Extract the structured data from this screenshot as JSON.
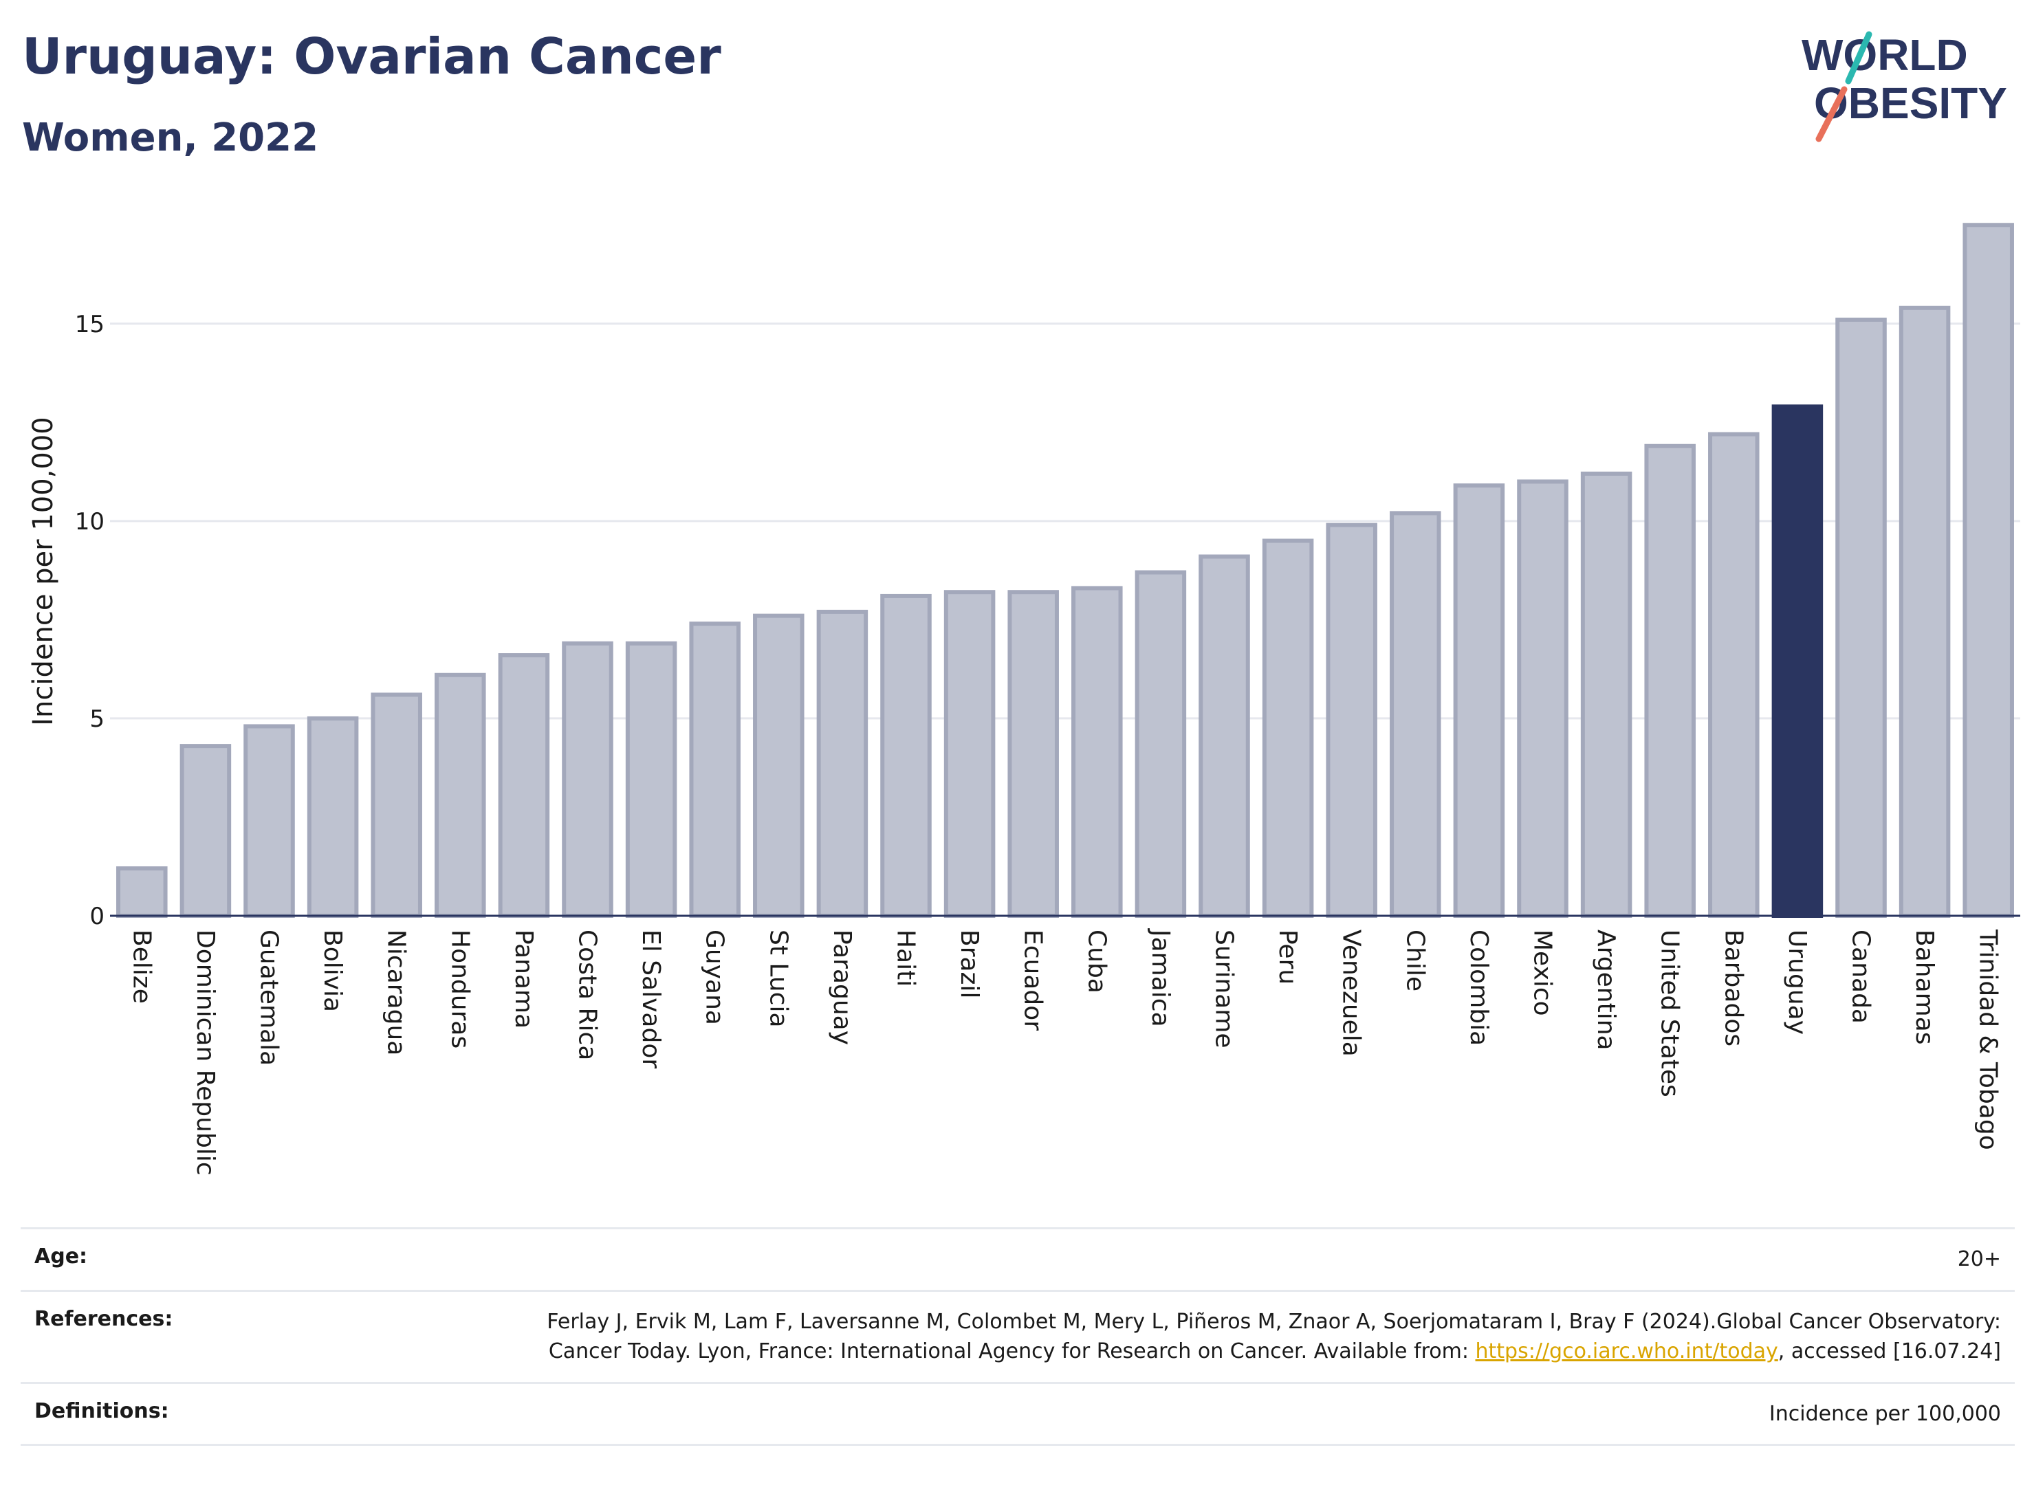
{
  "header": {
    "title": "Uruguay: Ovarian Cancer",
    "subtitle": "Women, 2022"
  },
  "logo": {
    "line1": "WORLD",
    "line2": "OBESITY"
  },
  "colors": {
    "highlight": "#2a3560",
    "bar_fill": "#bec2d0",
    "bar_stroke": "#a3a8bb",
    "grid": "#e6e8ee",
    "text": "#1a1a1a",
    "logo_teal": "#2bb8b0",
    "logo_red": "#e8705a"
  },
  "chart_data": {
    "type": "bar",
    "ylabel": "Incidence per 100,000",
    "ylim": [
      0,
      17.8
    ],
    "yticks": [
      0,
      5,
      10,
      15
    ],
    "grid": true,
    "highlight": "Uruguay",
    "categories": [
      "Belize",
      "Dominican Republic",
      "Guatemala",
      "Bolivia",
      "Nicaragua",
      "Honduras",
      "Panama",
      "Costa Rica",
      "El Salvador",
      "Guyana",
      "St Lucia",
      "Paraguay",
      "Haiti",
      "Brazil",
      "Ecuador",
      "Cuba",
      "Jamaica",
      "Suriname",
      "Peru",
      "Venezuela",
      "Chile",
      "Colombia",
      "Mexico",
      "Argentina",
      "United States",
      "Barbados",
      "Uruguay",
      "Canada",
      "Bahamas",
      "Trinidad & Tobago"
    ],
    "values": [
      1.2,
      4.3,
      4.8,
      5.0,
      5.6,
      6.1,
      6.6,
      6.9,
      6.9,
      7.4,
      7.6,
      7.7,
      8.1,
      8.2,
      8.2,
      8.3,
      8.7,
      9.1,
      9.5,
      9.9,
      10.2,
      10.9,
      11.0,
      11.2,
      11.9,
      12.2,
      12.9,
      15.1,
      15.4,
      17.5
    ]
  },
  "footer": {
    "age_label": "Age:",
    "age_value": "20+",
    "references_label": "References:",
    "references_text": "Ferlay J, Ervik M, Lam F, Laversanne M, Colombet M, Mery L, Piñeros M, Znaor A, Soerjomataram I, Bray F (2024).Global Cancer Observatory: Cancer Today. Lyon, France: International Agency for Research on Cancer. Available from: ",
    "references_link": "https://gco.iarc.who.int/today",
    "references_suffix": ", accessed [16.07.24]",
    "definitions_label": "Definitions:",
    "definitions_value": "Incidence per 100,000"
  }
}
